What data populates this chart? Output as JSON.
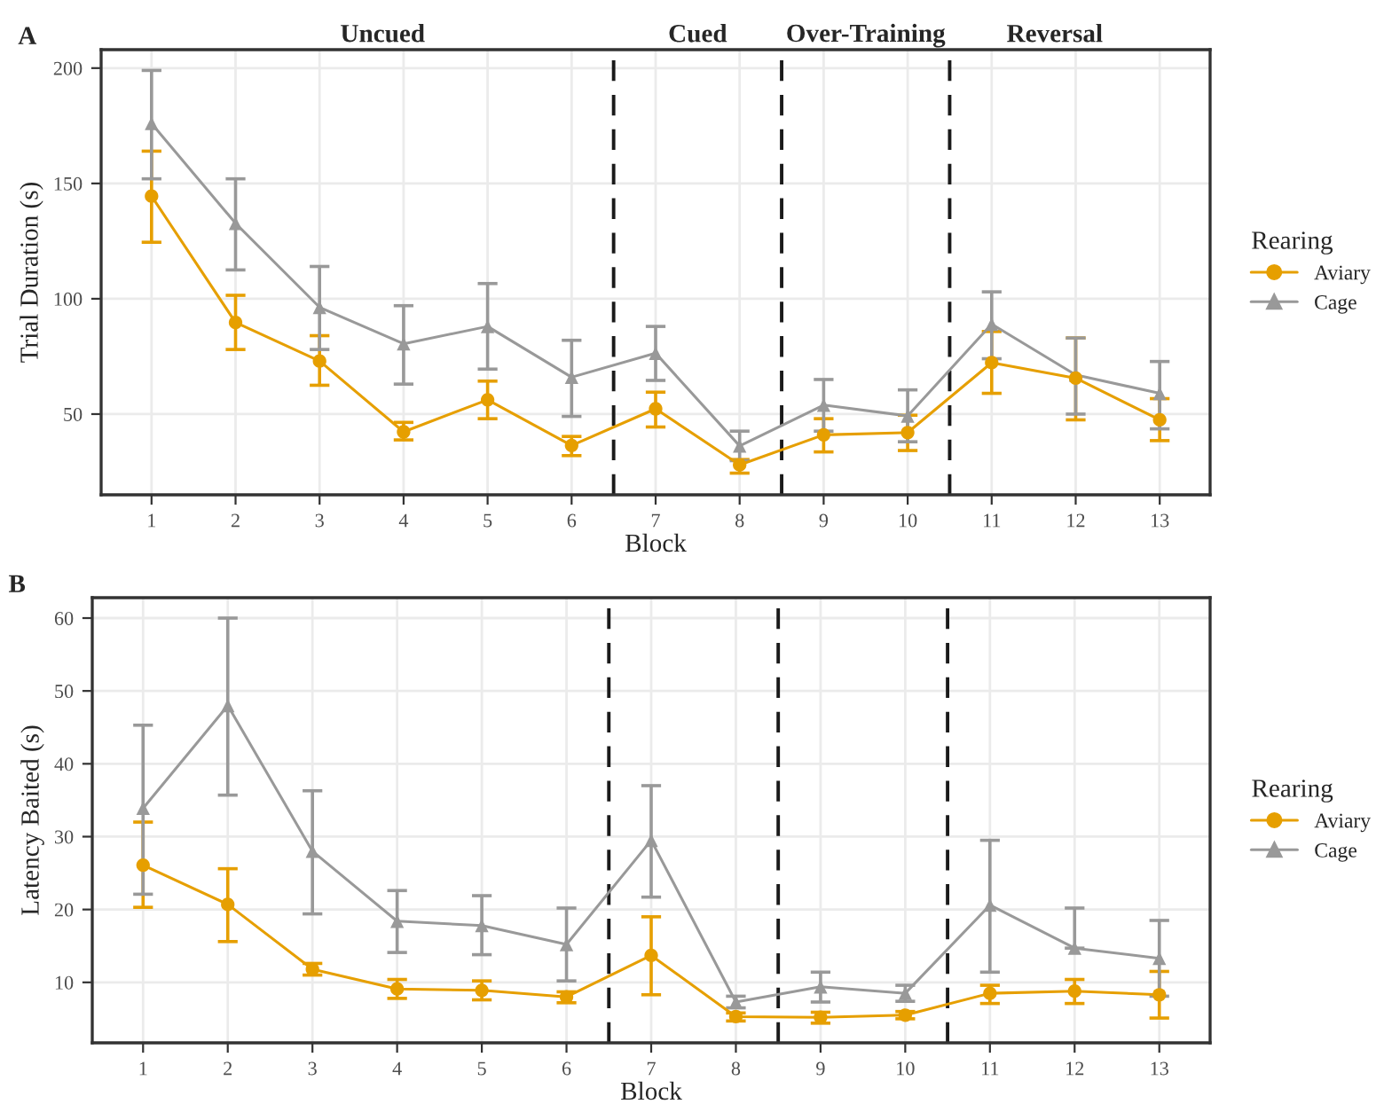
{
  "chart_data": [
    {
      "type": "line",
      "title": "A",
      "xlabel": "Block",
      "ylabel": "Trial Duration (s)",
      "legend_title": "Rearing",
      "legend": "right",
      "grid": true,
      "x": [
        1,
        2,
        3,
        4,
        5,
        6,
        7,
        8,
        9,
        10,
        11,
        12,
        13
      ],
      "xlim": [
        0.4,
        13.6
      ],
      "xticks": [
        1,
        2,
        3,
        4,
        5,
        6,
        7,
        8,
        9,
        10,
        11,
        12,
        13
      ],
      "ylim": [
        15,
        208
      ],
      "yticks": [
        50,
        100,
        150,
        200
      ],
      "ref_lines": [
        {
          "axis": "x",
          "value": 6.5,
          "line_style": "dashed",
          "color": "#1a1a1a"
        },
        {
          "axis": "x",
          "value": 8.5,
          "line_style": "dashed",
          "color": "#1a1a1a"
        },
        {
          "axis": "x",
          "value": 10.5,
          "line_style": "dashed",
          "color": "#1a1a1a"
        }
      ],
      "annotations": [
        "Uncued",
        "Cued",
        "Over-Training",
        "Reversal"
      ],
      "series": [
        {
          "name": "Aviary",
          "color": "#e69f00",
          "marker": "circle",
          "values": [
            144.5,
            89.7,
            73,
            42.3,
            56.2,
            36.4,
            52.3,
            28,
            41,
            42,
            72.3,
            65.6,
            47.5
          ],
          "errors": [
            [
              124.5,
              164
            ],
            [
              78,
              101.5
            ],
            [
              62.5,
              84
            ],
            [
              38.8,
              46.4
            ],
            [
              48,
              64.3
            ],
            [
              32,
              40.3
            ],
            [
              44.4,
              59.5
            ],
            [
              24.4,
              30.3
            ],
            [
              33.6,
              48
            ],
            [
              34.2,
              49.5
            ],
            [
              59,
              85.8
            ],
            [
              47.5,
              83
            ],
            [
              38.5,
              56.7
            ]
          ]
        },
        {
          "name": "Cage",
          "color": "#999999",
          "marker": "triangle",
          "values": [
            176,
            132.7,
            96.3,
            80.5,
            88,
            66,
            76.4,
            36.2,
            53.9,
            49.2,
            89,
            67,
            59
          ],
          "errors": [
            [
              152,
              199
            ],
            [
              112.5,
              152
            ],
            [
              78,
              114
            ],
            [
              63,
              97
            ],
            [
              69.5,
              106.6
            ],
            [
              49,
              82
            ],
            [
              64.6,
              88
            ],
            [
              29.8,
              42.6
            ],
            [
              42.6,
              65
            ],
            [
              38,
              60.5
            ],
            [
              74,
              103
            ],
            [
              50,
              83
            ],
            [
              43.6,
              72.8
            ]
          ]
        }
      ]
    },
    {
      "type": "line",
      "title": "B",
      "xlabel": "Block",
      "ylabel": "Latency Baited (s)",
      "legend_title": "Rearing",
      "legend": "right",
      "grid": true,
      "x": [
        1,
        2,
        3,
        4,
        5,
        6,
        7,
        8,
        9,
        10,
        11,
        12,
        13
      ],
      "xlim": [
        0.4,
        13.6
      ],
      "xticks": [
        1,
        2,
        3,
        4,
        5,
        6,
        7,
        8,
        9,
        10,
        11,
        12,
        13
      ],
      "ylim": [
        1.7,
        62.8
      ],
      "yticks": [
        10,
        20,
        30,
        40,
        50,
        60
      ],
      "ref_lines": [
        {
          "axis": "x",
          "value": 6.5,
          "line_style": "dashed",
          "color": "#1a1a1a"
        },
        {
          "axis": "x",
          "value": 8.5,
          "line_style": "dashed",
          "color": "#1a1a1a"
        },
        {
          "axis": "x",
          "value": 10.5,
          "line_style": "dashed",
          "color": "#1a1a1a"
        }
      ],
      "series": [
        {
          "name": "Aviary",
          "color": "#e69f00",
          "marker": "circle",
          "values": [
            26.1,
            20.7,
            11.8,
            9.1,
            8.9,
            8,
            13.7,
            5.3,
            5.2,
            5.5,
            8.5,
            8.8,
            8.3
          ],
          "errors": [
            [
              20.3,
              32
            ],
            [
              15.6,
              25.6
            ],
            [
              11,
              12.6
            ],
            [
              7.8,
              10.4
            ],
            [
              7.6,
              10.2
            ],
            [
              7.2,
              8.7
            ],
            [
              8.3,
              19
            ],
            [
              4.7,
              5.8
            ],
            [
              4.4,
              5.9
            ],
            [
              5,
              6
            ],
            [
              7.1,
              9.6
            ],
            [
              7.1,
              10.4
            ],
            [
              5.1,
              11.5
            ]
          ]
        },
        {
          "name": "Cage",
          "color": "#999999",
          "marker": "triangle",
          "values": [
            33.9,
            48,
            28,
            18.4,
            17.8,
            15.2,
            29.5,
            7.3,
            9.4,
            8.5,
            20.6,
            14.7,
            13.3
          ],
          "errors": [
            [
              22.1,
              45.3
            ],
            [
              35.7,
              60
            ],
            [
              19.4,
              36.3
            ],
            [
              14.1,
              22.6
            ],
            [
              13.8,
              21.9
            ],
            [
              10.2,
              20.2
            ],
            [
              21.7,
              37
            ],
            [
              6.5,
              8.1
            ],
            [
              7.3,
              11.4
            ],
            [
              7.4,
              9.6
            ],
            [
              11.4,
              29.5
            ],
            [
              14.7,
              20.2
            ],
            [
              8.1,
              18.5
            ]
          ]
        }
      ]
    }
  ]
}
